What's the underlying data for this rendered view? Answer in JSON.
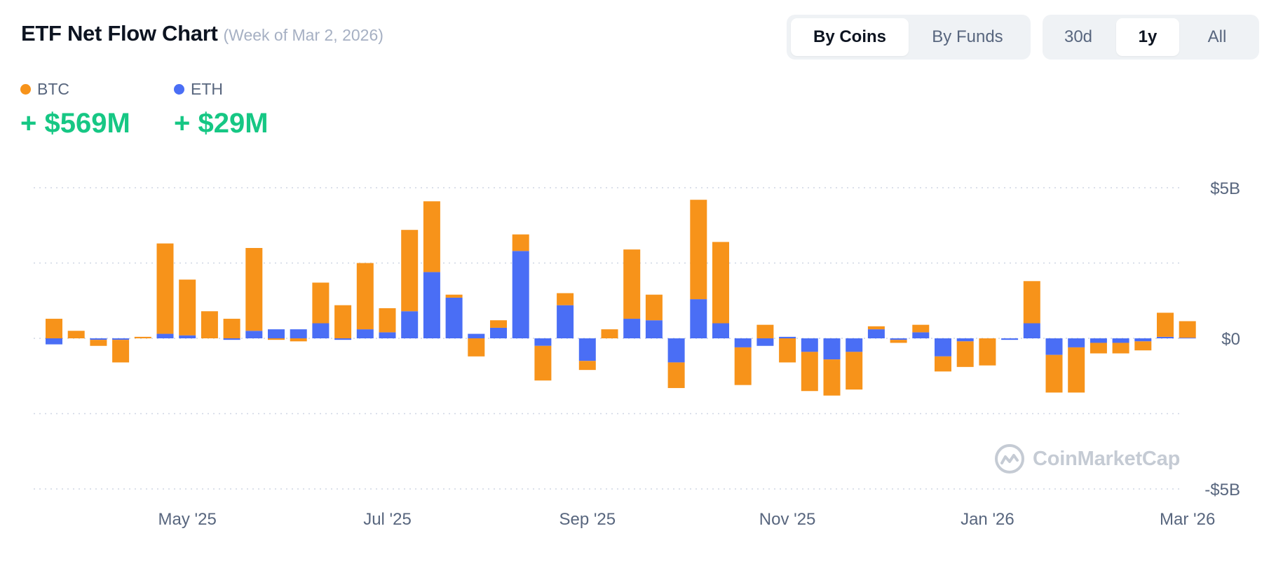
{
  "header": {
    "title": "ETF Net Flow Chart",
    "subtitle": "(Week of Mar 2, 2026)"
  },
  "view_toggle": {
    "options": [
      "By Coins",
      "By Funds"
    ],
    "selected": "By Coins"
  },
  "range_toggle": {
    "options": [
      "30d",
      "1y",
      "All"
    ],
    "selected": "1y"
  },
  "legend": [
    {
      "name": "BTC",
      "value": "+ $569M",
      "color": "#f7931a"
    },
    {
      "name": "ETH",
      "value": "+ $29M",
      "color": "#4a6ef5"
    }
  ],
  "watermark": "CoinMarketCap",
  "chart_data": {
    "type": "bar",
    "stacked": true,
    "unit": "USD billions",
    "ylim": [
      -5,
      5
    ],
    "y_ticks": [
      {
        "value": 5,
        "label": "$5B"
      },
      {
        "value": 0,
        "label": "$0"
      },
      {
        "value": -5,
        "label": "-$5B"
      }
    ],
    "x_ticks": [
      {
        "index": 6,
        "label": "May '25"
      },
      {
        "index": 15,
        "label": "Jul '25"
      },
      {
        "index": 24,
        "label": "Sep '25"
      },
      {
        "index": 33,
        "label": "Nov '25"
      },
      {
        "index": 42,
        "label": "Jan '26"
      },
      {
        "index": 51,
        "label": "Mar '26"
      }
    ],
    "grid": true,
    "legend_position": "top-left",
    "series": [
      {
        "name": "ETH",
        "color": "#4a6ef5",
        "values": [
          -0.2,
          0,
          -0.05,
          -0.05,
          0,
          0.15,
          0.1,
          0,
          -0.05,
          0.25,
          0.3,
          0.3,
          0.5,
          -0.05,
          0.3,
          0.2,
          0.9,
          2.2,
          1.35,
          0.15,
          0.35,
          2.9,
          -0.25,
          1.1,
          -0.75,
          0,
          0.65,
          0.6,
          -0.8,
          1.3,
          0.5,
          -0.3,
          -0.25,
          0.05,
          -0.45,
          -0.7,
          -0.45,
          0.3,
          -0.05,
          0.2,
          -0.6,
          -0.1,
          0,
          -0.05,
          0.5,
          -0.55,
          -0.3,
          -0.15,
          -0.15,
          -0.1,
          0.05,
          0.02
        ]
      },
      {
        "name": "BTC",
        "color": "#f7931a",
        "values": [
          0.65,
          0.25,
          -0.2,
          -0.75,
          0.05,
          3.0,
          1.85,
          0.9,
          0.65,
          2.75,
          -0.05,
          -0.1,
          1.35,
          1.1,
          2.2,
          0.8,
          2.7,
          2.35,
          0.1,
          -0.6,
          0.25,
          0.55,
          -1.15,
          0.4,
          -0.3,
          0.3,
          2.3,
          0.85,
          -0.85,
          3.3,
          2.7,
          -1.25,
          0.45,
          -0.8,
          -1.3,
          -1.2,
          -1.25,
          0.1,
          -0.1,
          0.25,
          -0.5,
          -0.85,
          -0.9,
          0,
          1.4,
          -1.25,
          -1.5,
          -0.35,
          -0.35,
          -0.3,
          0.8,
          0.55
        ]
      }
    ]
  }
}
